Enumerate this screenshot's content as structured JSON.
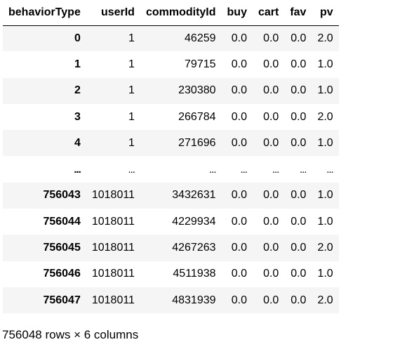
{
  "table": {
    "columns": [
      "behaviorType",
      "userId",
      "commodityId",
      "buy",
      "cart",
      "fav",
      "pv"
    ],
    "rows": [
      {
        "index": "0",
        "values": [
          "1",
          "46259",
          "0.0",
          "0.0",
          "0.0",
          "2.0"
        ]
      },
      {
        "index": "1",
        "values": [
          "1",
          "79715",
          "0.0",
          "0.0",
          "0.0",
          "1.0"
        ]
      },
      {
        "index": "2",
        "values": [
          "1",
          "230380",
          "0.0",
          "0.0",
          "0.0",
          "1.0"
        ]
      },
      {
        "index": "3",
        "values": [
          "1",
          "266784",
          "0.0",
          "0.0",
          "0.0",
          "2.0"
        ]
      },
      {
        "index": "4",
        "values": [
          "1",
          "271696",
          "0.0",
          "0.0",
          "0.0",
          "1.0"
        ]
      },
      {
        "index": "...",
        "values": [
          "...",
          "...",
          "...",
          "...",
          "...",
          "..."
        ],
        "ellipsis": true
      },
      {
        "index": "756043",
        "values": [
          "1018011",
          "3432631",
          "0.0",
          "0.0",
          "0.0",
          "1.0"
        ]
      },
      {
        "index": "756044",
        "values": [
          "1018011",
          "4229934",
          "0.0",
          "0.0",
          "0.0",
          "1.0"
        ]
      },
      {
        "index": "756045",
        "values": [
          "1018011",
          "4267263",
          "0.0",
          "0.0",
          "0.0",
          "2.0"
        ]
      },
      {
        "index": "756046",
        "values": [
          "1018011",
          "4511938",
          "0.0",
          "0.0",
          "0.0",
          "1.0"
        ]
      },
      {
        "index": "756047",
        "values": [
          "1018011",
          "4831939",
          "0.0",
          "0.0",
          "0.0",
          "2.0"
        ]
      }
    ]
  },
  "footer": {
    "shape_text": "756048 rows × 6 columns"
  }
}
